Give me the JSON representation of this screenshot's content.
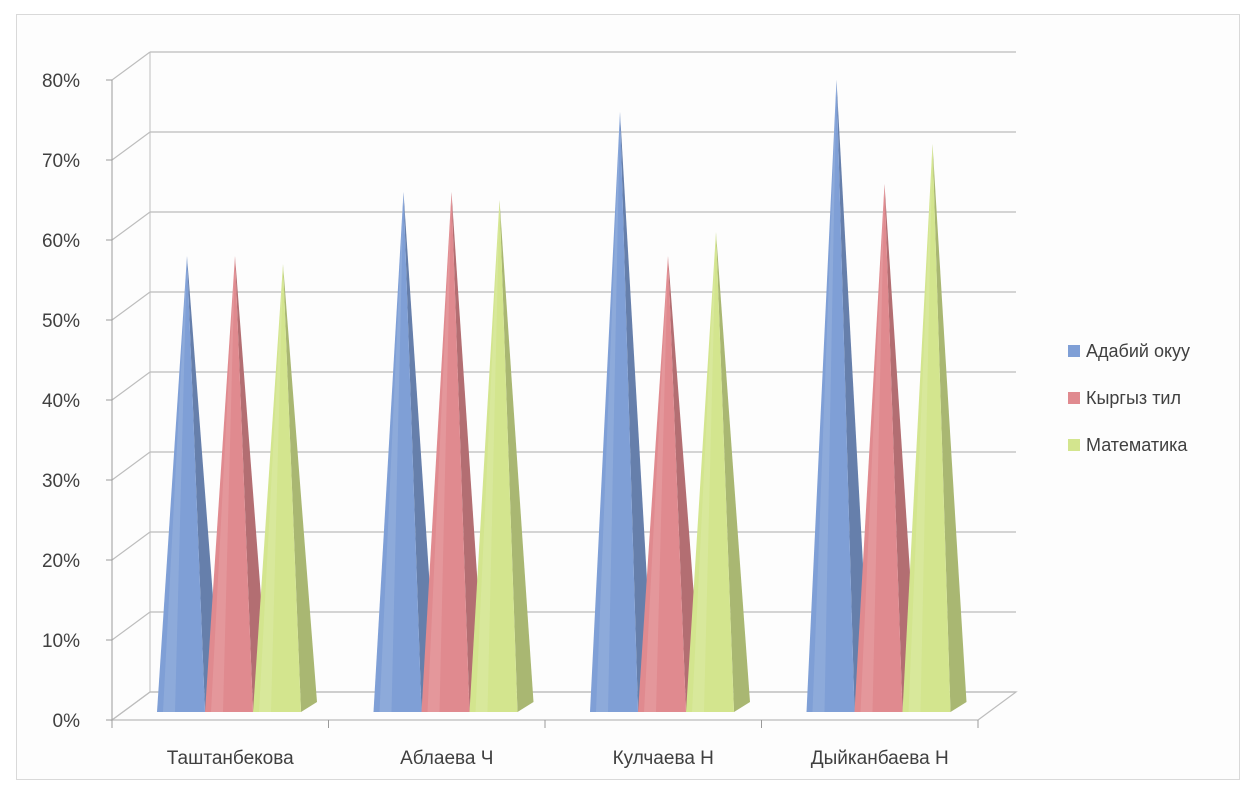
{
  "chart_data": {
    "type": "bar",
    "style": "3d-pyramid",
    "categories": [
      "Таштанбекова",
      "Аблаева Ч",
      "Кулчаева Н",
      "Дыйканбаева Н"
    ],
    "series": [
      {
        "name": "Адабий окуу",
        "color": "#7f9fd6",
        "values": [
          57,
          65,
          75,
          79
        ]
      },
      {
        "name": "Кыргыз тил",
        "color": "#e08a8f",
        "values": [
          57,
          65,
          57,
          66
        ]
      },
      {
        "name": "Математика",
        "color": "#d3e58e",
        "values": [
          56,
          64,
          60,
          71
        ]
      }
    ],
    "y_ticks": [
      "0%",
      "10%",
      "20%",
      "30%",
      "40%",
      "50%",
      "60%",
      "70%",
      "80%"
    ],
    "ylim": [
      0,
      80
    ],
    "legend": "right",
    "grid": true
  }
}
